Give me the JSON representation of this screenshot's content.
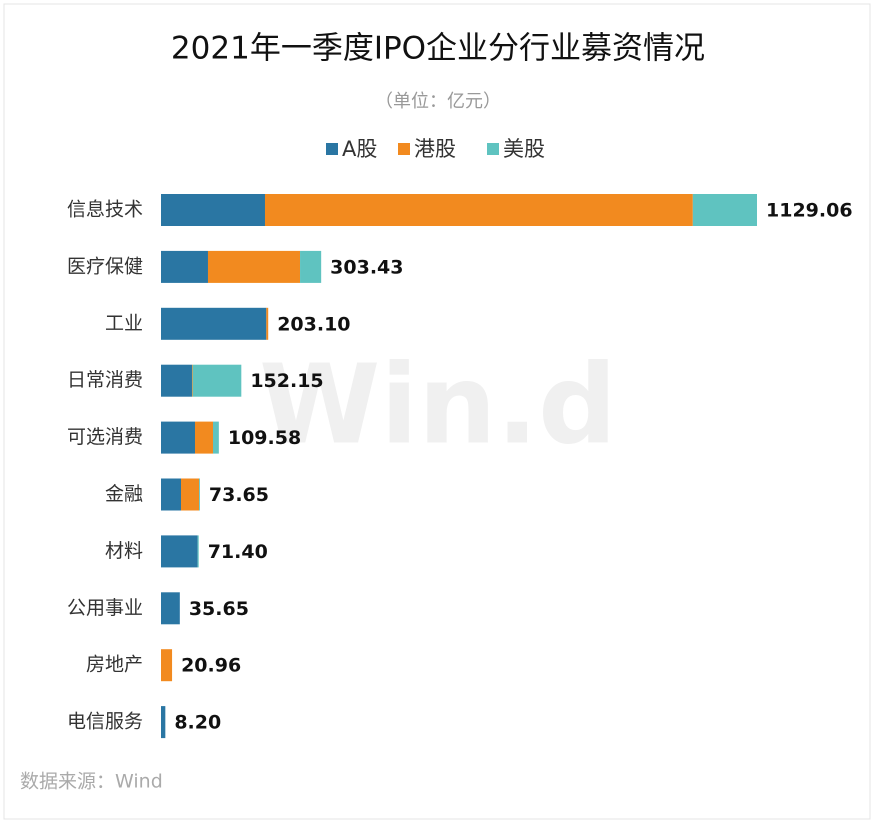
{
  "chart_data": {
    "type": "stacked_bar_horizontal",
    "title": "2021年一季度IPO企业分行业募资情况",
    "subtitle": "（单位：亿元）",
    "categories": [
      "信息技术",
      "医疗保健",
      "工业",
      "日常消费",
      "可选消费",
      "金融",
      "材料",
      "公用事业",
      "房地产",
      "电信服务"
    ],
    "series": [
      {
        "name": "A股",
        "color": "#2a76a3",
        "values": [
          197.0,
          89.0,
          199.5,
          58.7,
          64.4,
          37.9,
          69.4,
          35.65,
          0,
          8.2
        ]
      },
      {
        "name": "港股",
        "color": "#f28a1f",
        "values": [
          810.5,
          174.4,
          3.6,
          1.2,
          34.1,
          34.1,
          0,
          0,
          20.96,
          0
        ]
      },
      {
        "name": "美股",
        "color": "#5fc3c0",
        "values": [
          121.56,
          40.03,
          0,
          92.25,
          11.08,
          1.65,
          2.0,
          0,
          0,
          0
        ]
      }
    ],
    "totals": [
      1129.06,
      303.43,
      203.1,
      152.15,
      109.58,
      73.65,
      71.4,
      35.65,
      20.96,
      8.2
    ],
    "value_labels": [
      "1129.06",
      "303.43",
      "203.10",
      "152.15",
      "109.58",
      "73.65",
      "71.40",
      "35.65",
      "20.96",
      "8.20"
    ],
    "legend": "top",
    "source": "数据来源：Wind",
    "watermark": "Win.d"
  }
}
